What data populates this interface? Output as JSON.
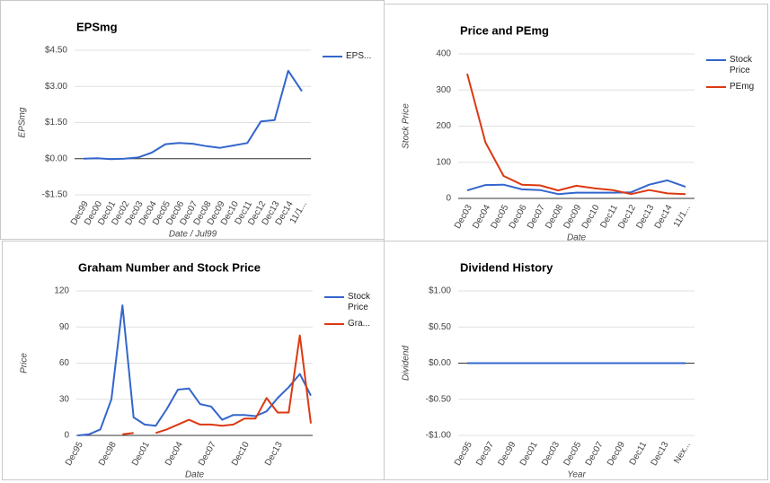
{
  "chart_data": [
    {
      "type": "line",
      "title": "EPSmg",
      "xlabel": "Date / Jul99",
      "ylabel": "EPSmg",
      "categories": [
        "Dec99",
        "Dec00",
        "Dec01",
        "Dec02",
        "Dec03",
        "Dec04",
        "Dec05",
        "Dec06",
        "Dec07",
        "Dec08",
        "Dec09",
        "Dec10",
        "Dec11",
        "Dec12",
        "Dec13",
        "Dec14",
        "11/1..."
      ],
      "series": [
        {
          "name": "EPS...",
          "color": "#3366cc",
          "values": [
            0,
            0.02,
            -0.02,
            0,
            0.05,
            0.25,
            0.6,
            0.65,
            0.62,
            0.52,
            0.45,
            0.55,
            0.65,
            1.55,
            1.6,
            3.65,
            2.8
          ]
        }
      ],
      "ylim": [
        -1.5,
        4.5
      ],
      "yticks": [
        {
          "value": -1.5,
          "label": "-$1.50"
        },
        {
          "value": 0,
          "label": "$0.00"
        },
        {
          "value": 1.5,
          "label": "$1.50"
        },
        {
          "value": 3,
          "label": "$3.00"
        },
        {
          "value": 4.5,
          "label": "$4.50"
        }
      ],
      "grid": true,
      "legend": "right"
    },
    {
      "type": "line",
      "title": "Price and PEmg",
      "xlabel": "Date",
      "ylabel": "Stock Price",
      "categories": [
        "Dec03",
        "Dec04",
        "Dec05",
        "Dec06",
        "Dec07",
        "Dec08",
        "Dec09",
        "Dec10",
        "Dec11",
        "Dec12",
        "Dec13",
        "Dec14",
        "11/1..."
      ],
      "series": [
        {
          "name": "Stock Price",
          "color": "#3366cc",
          "values": [
            22,
            37,
            38,
            25,
            23,
            12,
            16,
            16,
            16,
            17,
            38,
            50,
            32
          ]
        },
        {
          "name": "PEmg",
          "color": "#dc3912",
          "values": [
            345,
            155,
            62,
            38,
            36,
            22,
            35,
            28,
            23,
            12,
            23,
            14,
            12
          ]
        }
      ],
      "ylim": [
        0,
        400
      ],
      "yticks": [
        0,
        100,
        200,
        300,
        400
      ],
      "grid": true,
      "legend": "right"
    },
    {
      "type": "line",
      "title": "Graham Number and Stock Price",
      "xlabel": "Date",
      "ylabel": "Price",
      "categories": [
        "Dec95",
        null,
        null,
        "Dec98",
        null,
        null,
        "Dec01",
        null,
        null,
        "Dec04",
        null,
        null,
        "Dec07",
        null,
        null,
        "Dec10",
        null,
        null,
        "Dec13",
        null,
        null,
        null
      ],
      "series": [
        {
          "name": "Stock Price",
          "color": "#3366cc",
          "values": [
            0,
            1,
            5,
            30,
            108,
            15,
            9,
            8,
            22,
            38,
            39,
            26,
            24,
            13,
            17,
            17,
            16,
            20,
            31,
            40,
            51,
            33
          ]
        },
        {
          "name": "Gra...",
          "color": "#dc3912",
          "values": [
            null,
            null,
            null,
            null,
            1,
            2,
            null,
            2,
            5,
            9,
            13,
            9,
            9,
            8,
            9,
            14,
            14,
            31,
            19,
            19,
            83,
            10
          ]
        }
      ],
      "ylim": [
        0,
        120
      ],
      "yticks": [
        0,
        30,
        60,
        90,
        120
      ],
      "grid": true,
      "legend": "right"
    },
    {
      "type": "line",
      "title": "Dividend History",
      "xlabel": "Year",
      "ylabel": "Dividend",
      "categories": [
        "Dec95",
        "Dec97",
        "Dec99",
        "Dec01",
        "Dec03",
        "Dec05",
        "Dec07",
        "Dec09",
        "Dec11",
        "Dec13",
        "Nex..."
      ],
      "series": [
        {
          "color": "#3366cc",
          "values": [
            0,
            0,
            0,
            0,
            0,
            0,
            0,
            0,
            0,
            0,
            0
          ]
        }
      ],
      "ylim": [
        -1,
        1
      ],
      "yticks": [
        {
          "value": -1,
          "label": "-$1.00"
        },
        {
          "value": -0.5,
          "label": "-$0.50"
        },
        {
          "value": 0,
          "label": "$0.00"
        },
        {
          "value": 0.5,
          "label": "$0.50"
        },
        {
          "value": 1,
          "label": "$1.00"
        }
      ],
      "grid": true
    }
  ]
}
